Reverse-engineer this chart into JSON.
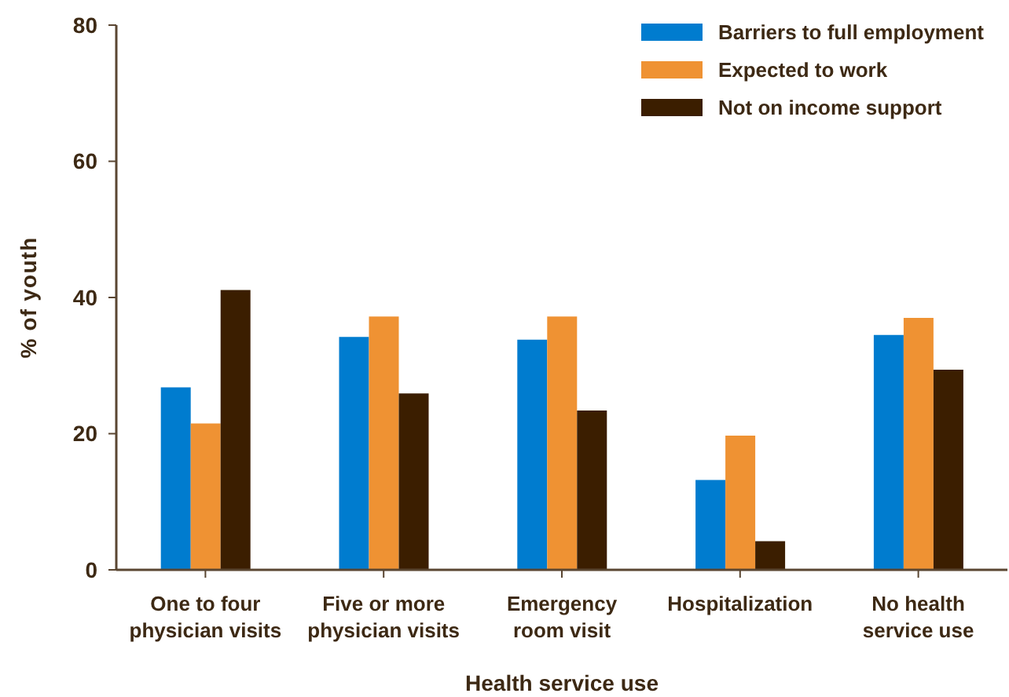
{
  "chart_data": {
    "type": "bar",
    "xlabel": "Health service use",
    "ylabel": "% of youth",
    "categories": [
      "One to four physician visits",
      "Five or more physician visits",
      "Emergency room visit",
      "Hospitalization",
      "No health service use"
    ],
    "series": [
      {
        "name": "Barriers to full employment",
        "color": "#007ccf",
        "values": [
          26.8,
          34.2,
          33.8,
          13.2,
          34.5
        ]
      },
      {
        "name": "Expected to work",
        "color": "#ef9233",
        "values": [
          21.5,
          37.2,
          37.2,
          19.7,
          37.0
        ]
      },
      {
        "name": "Not on income support",
        "color": "#3b1e00",
        "values": [
          41.1,
          25.9,
          23.4,
          4.2,
          29.4
        ]
      }
    ],
    "ylim": [
      0,
      80
    ],
    "yticks": [
      0,
      20,
      40,
      60,
      80
    ],
    "legend": "top right"
  }
}
